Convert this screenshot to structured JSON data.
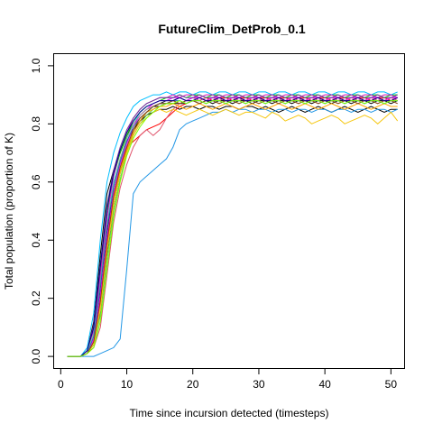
{
  "chart_data": {
    "type": "line",
    "title": "FutureClim_DetProb_0.1",
    "xlabel": "Time since incursion detected (timesteps)",
    "ylabel": "Total population (proportion of K)",
    "xlim": [
      -1,
      52
    ],
    "ylim": [
      -0.04,
      1.04
    ],
    "x_ticks": [
      0,
      10,
      20,
      30,
      40,
      50
    ],
    "y_ticks": [
      0.0,
      0.2,
      0.4,
      0.6,
      0.8,
      1.0
    ],
    "x_tick_labels": [
      "0",
      "10",
      "20",
      "30",
      "40",
      "50"
    ],
    "y_tick_labels": [
      "0.0",
      "0.2",
      "0.4",
      "0.6",
      "0.8",
      "1.0"
    ],
    "grid": false,
    "legend": "none",
    "series": [
      {
        "color": "#000000",
        "values": [
          0,
          0,
          0,
          0.02,
          0.12,
          0.35,
          0.56,
          0.64,
          0.7,
          0.76,
          0.8,
          0.83,
          0.85,
          0.86,
          0.86,
          0.87,
          0.87,
          0.87,
          0.87,
          0.88,
          0.87,
          0.88,
          0.87,
          0.88,
          0.88,
          0.87,
          0.88,
          0.88,
          0.87,
          0.88,
          0.88,
          0.87,
          0.88,
          0.88,
          0.87,
          0.88,
          0.88,
          0.87,
          0.88,
          0.88,
          0.87,
          0.88,
          0.88,
          0.87,
          0.88,
          0.88,
          0.87,
          0.88,
          0.88,
          0.87,
          0.88
        ]
      },
      {
        "color": "#000000",
        "values": [
          0,
          0,
          0,
          0.01,
          0.06,
          0.22,
          0.42,
          0.58,
          0.68,
          0.74,
          0.78,
          0.81,
          0.83,
          0.84,
          0.85,
          0.85,
          0.86,
          0.85,
          0.86,
          0.86,
          0.85,
          0.86,
          0.86,
          0.85,
          0.86,
          0.86,
          0.85,
          0.86,
          0.86,
          0.85,
          0.86,
          0.85,
          0.84,
          0.85,
          0.86,
          0.85,
          0.84,
          0.85,
          0.86,
          0.85,
          0.84,
          0.85,
          0.86,
          0.85,
          0.84,
          0.85,
          0.86,
          0.85,
          0.84,
          0.85,
          0.85
        ]
      },
      {
        "color": "#000000",
        "values": [
          0,
          0,
          0,
          0.01,
          0.04,
          0.15,
          0.35,
          0.52,
          0.63,
          0.71,
          0.77,
          0.81,
          0.84,
          0.86,
          0.87,
          0.88,
          0.88,
          0.89,
          0.88,
          0.89,
          0.89,
          0.88,
          0.89,
          0.89,
          0.88,
          0.89,
          0.89,
          0.88,
          0.89,
          0.89,
          0.88,
          0.89,
          0.89,
          0.88,
          0.89,
          0.89,
          0.88,
          0.89,
          0.89,
          0.88,
          0.89,
          0.89,
          0.88,
          0.89,
          0.89,
          0.88,
          0.89,
          0.89,
          0.88,
          0.89,
          0.89
        ]
      },
      {
        "color": "#FF0000",
        "values": [
          0,
          0,
          0,
          0.01,
          0.05,
          0.2,
          0.4,
          0.56,
          0.66,
          0.72,
          0.74,
          0.76,
          0.78,
          0.79,
          0.8,
          0.82,
          0.84,
          0.86,
          0.87,
          0.88,
          0.88,
          0.89,
          0.88,
          0.89,
          0.89,
          0.88,
          0.89,
          0.89,
          0.88,
          0.89,
          0.89,
          0.88,
          0.89,
          0.89,
          0.88,
          0.89,
          0.89,
          0.88,
          0.89,
          0.89,
          0.88,
          0.89,
          0.89,
          0.88,
          0.89,
          0.89,
          0.88,
          0.89,
          0.89,
          0.88,
          0.89
        ]
      },
      {
        "color": "#DF536B",
        "values": [
          0,
          0,
          0,
          0.01,
          0.03,
          0.1,
          0.28,
          0.46,
          0.58,
          0.66,
          0.72,
          0.76,
          0.78,
          0.76,
          0.78,
          0.82,
          0.85,
          0.87,
          0.88,
          0.89,
          0.88,
          0.89,
          0.89,
          0.88,
          0.89,
          0.89,
          0.88,
          0.89,
          0.89,
          0.88,
          0.89,
          0.89,
          0.88,
          0.89,
          0.89,
          0.88,
          0.89,
          0.89,
          0.88,
          0.89,
          0.89,
          0.88,
          0.89,
          0.89,
          0.88,
          0.89,
          0.89,
          0.88,
          0.89,
          0.89,
          0.88
        ]
      },
      {
        "color": "#61D04F",
        "values": [
          0,
          0,
          0,
          0.01,
          0.04,
          0.14,
          0.33,
          0.5,
          0.61,
          0.7,
          0.76,
          0.8,
          0.83,
          0.85,
          0.86,
          0.87,
          0.87,
          0.88,
          0.87,
          0.88,
          0.88,
          0.87,
          0.88,
          0.88,
          0.87,
          0.88,
          0.88,
          0.87,
          0.88,
          0.88,
          0.87,
          0.88,
          0.88,
          0.87,
          0.88,
          0.88,
          0.87,
          0.88,
          0.88,
          0.87,
          0.88,
          0.88,
          0.87,
          0.88,
          0.88,
          0.87,
          0.88,
          0.88,
          0.87,
          0.88,
          0.88
        ]
      },
      {
        "color": "#00CD00",
        "values": [
          0,
          0,
          0,
          0.02,
          0.1,
          0.3,
          0.5,
          0.62,
          0.7,
          0.76,
          0.81,
          0.84,
          0.86,
          0.87,
          0.88,
          0.89,
          0.89,
          0.9,
          0.89,
          0.9,
          0.9,
          0.89,
          0.9,
          0.9,
          0.89,
          0.9,
          0.9,
          0.89,
          0.9,
          0.9,
          0.89,
          0.9,
          0.9,
          0.89,
          0.9,
          0.9,
          0.89,
          0.9,
          0.9,
          0.89,
          0.9,
          0.9,
          0.89,
          0.9,
          0.9,
          0.89,
          0.9,
          0.9,
          0.89,
          0.9,
          0.9
        ]
      },
      {
        "color": "#2297E6",
        "values": [
          0,
          0,
          0,
          0,
          0,
          0.01,
          0.02,
          0.03,
          0.06,
          0.3,
          0.56,
          0.6,
          0.62,
          0.64,
          0.66,
          0.68,
          0.72,
          0.78,
          0.8,
          0.81,
          0.82,
          0.83,
          0.84,
          0.84,
          0.85,
          0.84,
          0.85,
          0.85,
          0.84,
          0.85,
          0.85,
          0.84,
          0.85,
          0.85,
          0.84,
          0.85,
          0.85,
          0.84,
          0.85,
          0.85,
          0.84,
          0.85,
          0.85,
          0.84,
          0.85,
          0.85,
          0.84,
          0.85,
          0.85,
          0.84,
          0.85
        ]
      },
      {
        "color": "#00BFFF",
        "values": [
          0,
          0,
          0,
          0.03,
          0.15,
          0.4,
          0.6,
          0.7,
          0.77,
          0.82,
          0.86,
          0.88,
          0.89,
          0.9,
          0.9,
          0.91,
          0.9,
          0.91,
          0.91,
          0.9,
          0.91,
          0.91,
          0.9,
          0.91,
          0.91,
          0.9,
          0.91,
          0.91,
          0.9,
          0.91,
          0.91,
          0.9,
          0.91,
          0.91,
          0.9,
          0.91,
          0.91,
          0.9,
          0.91,
          0.91,
          0.9,
          0.91,
          0.91,
          0.9,
          0.91,
          0.91,
          0.9,
          0.91,
          0.91,
          0.9,
          0.91
        ]
      },
      {
        "color": "#28E2E5",
        "values": [
          0,
          0,
          0,
          0.02,
          0.08,
          0.26,
          0.46,
          0.6,
          0.68,
          0.75,
          0.8,
          0.84,
          0.86,
          0.87,
          0.88,
          0.88,
          0.89,
          0.89,
          0.88,
          0.89,
          0.89,
          0.88,
          0.89,
          0.89,
          0.88,
          0.89,
          0.89,
          0.88,
          0.89,
          0.89,
          0.88,
          0.89,
          0.89,
          0.88,
          0.89,
          0.89,
          0.88,
          0.89,
          0.89,
          0.88,
          0.89,
          0.89,
          0.88,
          0.89,
          0.89,
          0.88,
          0.89,
          0.89,
          0.88,
          0.89,
          0.89
        ]
      },
      {
        "color": "#CD0BBC",
        "values": [
          0,
          0,
          0,
          0.02,
          0.09,
          0.28,
          0.48,
          0.62,
          0.71,
          0.77,
          0.82,
          0.85,
          0.87,
          0.88,
          0.89,
          0.89,
          0.9,
          0.89,
          0.9,
          0.9,
          0.89,
          0.9,
          0.9,
          0.89,
          0.9,
          0.9,
          0.89,
          0.9,
          0.9,
          0.89,
          0.9,
          0.9,
          0.89,
          0.9,
          0.9,
          0.89,
          0.9,
          0.9,
          0.89,
          0.9,
          0.9,
          0.89,
          0.9,
          0.9,
          0.89,
          0.9,
          0.9,
          0.89,
          0.9,
          0.9,
          0.89
        ]
      },
      {
        "color": "#FF00FF",
        "values": [
          0,
          0,
          0,
          0.01,
          0.06,
          0.21,
          0.41,
          0.56,
          0.66,
          0.73,
          0.79,
          0.83,
          0.85,
          0.87,
          0.88,
          0.88,
          0.89,
          0.89,
          0.88,
          0.89,
          0.89,
          0.88,
          0.89,
          0.89,
          0.88,
          0.89,
          0.89,
          0.88,
          0.89,
          0.89,
          0.88,
          0.89,
          0.89,
          0.88,
          0.89,
          0.89,
          0.88,
          0.89,
          0.89,
          0.88,
          0.89,
          0.89,
          0.88,
          0.89,
          0.89,
          0.88,
          0.89,
          0.89,
          0.88,
          0.89,
          0.89
        ]
      },
      {
        "color": "#F5C710",
        "values": [
          0,
          0,
          0,
          0.01,
          0.04,
          0.16,
          0.36,
          0.52,
          0.63,
          0.7,
          0.76,
          0.8,
          0.82,
          0.84,
          0.85,
          0.84,
          0.85,
          0.84,
          0.83,
          0.84,
          0.85,
          0.84,
          0.83,
          0.84,
          0.85,
          0.84,
          0.83,
          0.84,
          0.84,
          0.83,
          0.82,
          0.84,
          0.83,
          0.81,
          0.82,
          0.83,
          0.82,
          0.8,
          0.81,
          0.82,
          0.83,
          0.82,
          0.8,
          0.81,
          0.82,
          0.83,
          0.82,
          0.8,
          0.82,
          0.84,
          0.81
        ]
      },
      {
        "color": "#FFA500",
        "values": [
          0,
          0,
          0,
          0.01,
          0.05,
          0.18,
          0.38,
          0.54,
          0.64,
          0.71,
          0.77,
          0.81,
          0.84,
          0.85,
          0.86,
          0.86,
          0.87,
          0.86,
          0.85,
          0.86,
          0.87,
          0.86,
          0.85,
          0.86,
          0.87,
          0.86,
          0.85,
          0.86,
          0.87,
          0.86,
          0.85,
          0.86,
          0.87,
          0.86,
          0.85,
          0.86,
          0.87,
          0.86,
          0.85,
          0.86,
          0.87,
          0.86,
          0.85,
          0.86,
          0.87,
          0.86,
          0.85,
          0.86,
          0.87,
          0.86,
          0.86
        ]
      },
      {
        "color": "#9E9E9E",
        "values": [
          0,
          0,
          0,
          0.02,
          0.08,
          0.25,
          0.45,
          0.59,
          0.68,
          0.75,
          0.8,
          0.83,
          0.85,
          0.86,
          0.87,
          0.87,
          0.88,
          0.87,
          0.88,
          0.88,
          0.87,
          0.88,
          0.88,
          0.87,
          0.88,
          0.88,
          0.87,
          0.88,
          0.88,
          0.87,
          0.88,
          0.88,
          0.87,
          0.88,
          0.88,
          0.87,
          0.88,
          0.88,
          0.87,
          0.88,
          0.88,
          0.87,
          0.88,
          0.88,
          0.87,
          0.88,
          0.88,
          0.87,
          0.88,
          0.88,
          0.87
        ]
      },
      {
        "color": "#6A3D9A",
        "values": [
          0,
          0,
          0,
          0.02,
          0.11,
          0.32,
          0.52,
          0.64,
          0.72,
          0.78,
          0.82,
          0.85,
          0.87,
          0.88,
          0.89,
          0.89,
          0.89,
          0.9,
          0.89,
          0.89,
          0.9,
          0.89,
          0.89,
          0.9,
          0.89,
          0.89,
          0.9,
          0.89,
          0.89,
          0.9,
          0.89,
          0.89,
          0.9,
          0.89,
          0.89,
          0.9,
          0.89,
          0.89,
          0.9,
          0.89,
          0.89,
          0.9,
          0.89,
          0.89,
          0.9,
          0.89,
          0.89,
          0.9,
          0.89,
          0.89,
          0.9
        ]
      },
      {
        "color": "#1F78B4",
        "values": [
          0,
          0,
          0,
          0.01,
          0.07,
          0.24,
          0.44,
          0.58,
          0.67,
          0.74,
          0.79,
          0.82,
          0.84,
          0.86,
          0.87,
          0.87,
          0.88,
          0.88,
          0.87,
          0.88,
          0.88,
          0.87,
          0.88,
          0.88,
          0.87,
          0.88,
          0.88,
          0.87,
          0.88,
          0.88,
          0.87,
          0.88,
          0.88,
          0.87,
          0.88,
          0.88,
          0.87,
          0.88,
          0.88,
          0.87,
          0.88,
          0.88,
          0.87,
          0.88,
          0.88,
          0.87,
          0.88,
          0.88,
          0.87,
          0.88,
          0.88
        ]
      },
      {
        "color": "#8B4513",
        "values": [
          0,
          0,
          0,
          0.01,
          0.05,
          0.19,
          0.39,
          0.55,
          0.65,
          0.72,
          0.78,
          0.82,
          0.84,
          0.86,
          0.87,
          0.87,
          0.88,
          0.87,
          0.88,
          0.88,
          0.87,
          0.88,
          0.88,
          0.87,
          0.88,
          0.88,
          0.87,
          0.88,
          0.88,
          0.87,
          0.88,
          0.88,
          0.87,
          0.88,
          0.88,
          0.87,
          0.88,
          0.88,
          0.87,
          0.88,
          0.88,
          0.87,
          0.88,
          0.88,
          0.87,
          0.88,
          0.88,
          0.87,
          0.88,
          0.88,
          0.87
        ]
      },
      {
        "color": "#00008B",
        "values": [
          0,
          0,
          0,
          0.02,
          0.1,
          0.31,
          0.51,
          0.63,
          0.71,
          0.77,
          0.81,
          0.84,
          0.86,
          0.87,
          0.88,
          0.88,
          0.88,
          0.89,
          0.88,
          0.88,
          0.89,
          0.88,
          0.88,
          0.89,
          0.88,
          0.88,
          0.89,
          0.88,
          0.88,
          0.89,
          0.88,
          0.88,
          0.89,
          0.88,
          0.88,
          0.89,
          0.88,
          0.88,
          0.89,
          0.88,
          0.88,
          0.89,
          0.88,
          0.88,
          0.89,
          0.88,
          0.88,
          0.89,
          0.88,
          0.88,
          0.89
        ]
      },
      {
        "color": "#7FFF00",
        "values": [
          0,
          0,
          0,
          0.01,
          0.03,
          0.12,
          0.3,
          0.48,
          0.6,
          0.69,
          0.75,
          0.79,
          0.82,
          0.84,
          0.86,
          0.87,
          0.87,
          0.88,
          0.87,
          0.88,
          0.88,
          0.87,
          0.88,
          0.88,
          0.87,
          0.88,
          0.88,
          0.87,
          0.88,
          0.88,
          0.87,
          0.88,
          0.88,
          0.87,
          0.88,
          0.88,
          0.87,
          0.88,
          0.88,
          0.87,
          0.88,
          0.88,
          0.87,
          0.88,
          0.88,
          0.87,
          0.88,
          0.88,
          0.87,
          0.88,
          0.88
        ]
      }
    ]
  }
}
